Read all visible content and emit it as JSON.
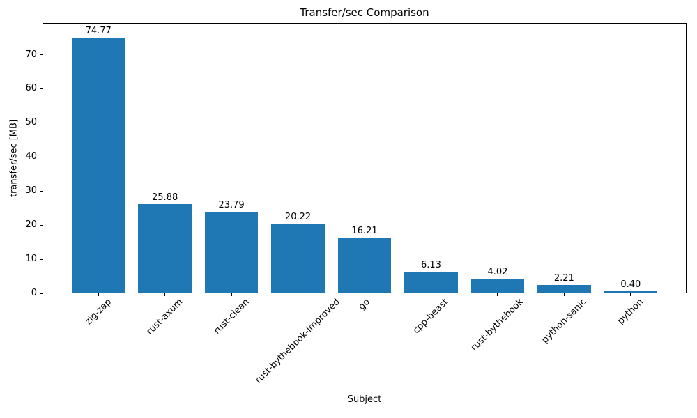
{
  "chart_data": {
    "type": "bar",
    "title": "Transfer/sec Comparison",
    "xlabel": "Subject",
    "ylabel": "transfer/sec [MB]",
    "categories": [
      "zig-zap",
      "rust-axum",
      "rust-clean",
      "rust-bythebook-improved",
      "go",
      "cpp-beast",
      "rust-bythebook",
      "python-sanic",
      "python"
    ],
    "values": [
      74.77,
      25.88,
      23.79,
      20.22,
      16.21,
      6.13,
      4.02,
      2.21,
      0.4
    ],
    "value_labels": [
      "74.77",
      "25.88",
      "23.79",
      "20.22",
      "16.21",
      "6.13",
      "4.02",
      "2.21",
      "0.40"
    ],
    "yticks": [
      0,
      10,
      20,
      30,
      40,
      50,
      60,
      70
    ],
    "ytick_labels": [
      "0",
      "10",
      "20",
      "30",
      "40",
      "50",
      "60",
      "70"
    ],
    "ylim": [
      0,
      79.3
    ],
    "bar_color": "#1f77b4",
    "axis_color": "#000000",
    "grid": false,
    "legend": null,
    "bar_width_fraction": 0.8,
    "x_units_span": 9.68,
    "x_left_pad_units": 0.84
  }
}
